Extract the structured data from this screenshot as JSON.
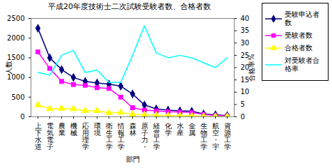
{
  "chart_data": {
    "type": "line",
    "title": "平成20年度技術士二次試験受験者数、合格者数",
    "x_label": "部門",
    "y_label": "人数",
    "y2_label": "合格率%",
    "categories": [
      "上下水道",
      "電気電子",
      "農業",
      "機械",
      "応用理学",
      "環境",
      "衛生工学",
      "情報工学",
      "森林",
      "原子力・",
      "経営工学",
      "化学",
      "水産",
      "金属",
      "生物工学",
      "航空・宇",
      "資源工学"
    ],
    "series": [
      {
        "name": "受験申込者数",
        "color": "#000080",
        "marker": "diamond",
        "values": [
          2250,
          1500,
          1200,
          1000,
          900,
          860,
          830,
          780,
          580,
          300,
          200,
          170,
          150,
          140,
          70,
          50,
          30
        ]
      },
      {
        "name": "受験者数",
        "color": "#ff00ff",
        "marker": "square",
        "values": [
          1650,
          1230,
          900,
          820,
          800,
          740,
          720,
          500,
          230,
          170,
          150,
          130,
          120,
          110,
          60,
          30,
          20
        ]
      },
      {
        "name": "合格者数",
        "color": "#ffff00",
        "marker": "triangle",
        "values": [
          300,
          200,
          210,
          200,
          150,
          150,
          100,
          110,
          60,
          50,
          40,
          30,
          30,
          20,
          10,
          5,
          5
        ]
      },
      {
        "name": "対受験者合格率",
        "color": "#00ffff",
        "marker": "none",
        "axis": "y2",
        "values": [
          18,
          17,
          25,
          27,
          18,
          19,
          14,
          14,
          25,
          37,
          26,
          24,
          25,
          24,
          22,
          20,
          24
        ]
      }
    ],
    "ylim": [
      0,
      2500
    ],
    "yticks": [
      0,
      500,
      1000,
      1500,
      2000,
      2500
    ],
    "y2lim": [
      0,
      40
    ],
    "y2ticks": [
      0,
      5,
      10,
      15,
      20,
      25,
      30,
      35,
      40
    ],
    "grid": false,
    "legend": "right"
  }
}
